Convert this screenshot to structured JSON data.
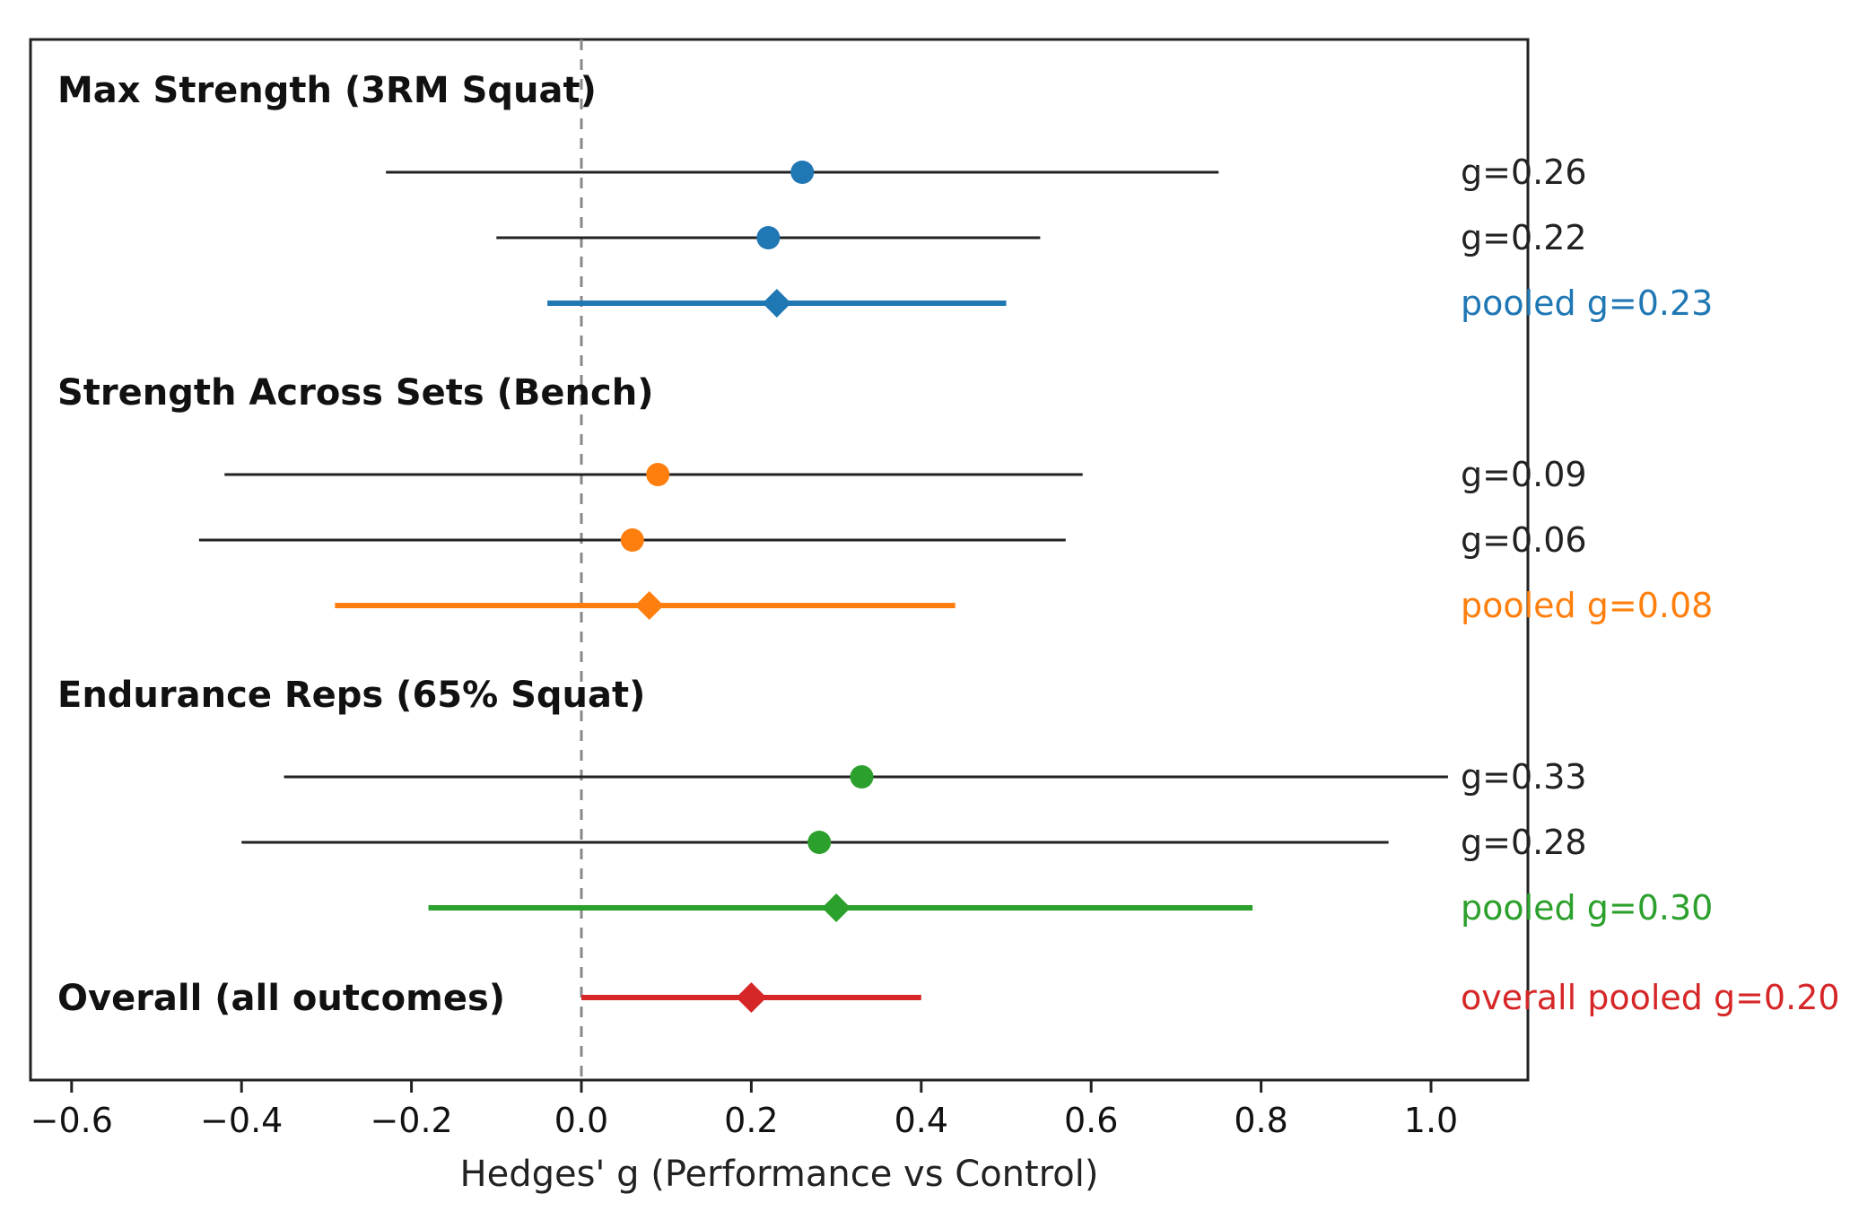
{
  "chart_data": {
    "type": "forest",
    "xlabel": "Hedges' g (Performance vs Control)",
    "xlim": [
      -0.65,
      1.12
    ],
    "xticks": [
      -0.6,
      -0.4,
      -0.2,
      0.0,
      0.2,
      0.4,
      0.6,
      0.8,
      1.0
    ],
    "xtick_labels": [
      "−0.6",
      "−0.4",
      "−0.2",
      "0.0",
      "0.2",
      "0.4",
      "0.6",
      "0.8",
      "1.0"
    ],
    "reference_line": 0.0,
    "colors": {
      "study_line": "#222222",
      "reference": "#888888",
      "blue": "#1f77b4",
      "orange": "#ff7f0e",
      "green": "#2ca02c",
      "red": "#d62728"
    },
    "groups": [
      {
        "title": "Max Strength (3RM Squat)",
        "color": "#1f77b4",
        "studies": [
          {
            "g": 0.26,
            "lo": -0.23,
            "hi": 0.75,
            "label": "g=0.26"
          },
          {
            "g": 0.22,
            "lo": -0.1,
            "hi": 0.54,
            "label": "g=0.22"
          }
        ],
        "pooled": {
          "g": 0.23,
          "lo": -0.04,
          "hi": 0.5,
          "label": "pooled g=0.23"
        }
      },
      {
        "title": "Strength Across Sets (Bench)",
        "color": "#ff7f0e",
        "studies": [
          {
            "g": 0.09,
            "lo": -0.42,
            "hi": 0.59,
            "label": "g=0.09"
          },
          {
            "g": 0.06,
            "lo": -0.45,
            "hi": 0.57,
            "label": "g=0.06"
          }
        ],
        "pooled": {
          "g": 0.08,
          "lo": -0.29,
          "hi": 0.44,
          "label": "pooled g=0.08"
        }
      },
      {
        "title": "Endurance Reps (65% Squat)",
        "color": "#2ca02c",
        "studies": [
          {
            "g": 0.33,
            "lo": -0.35,
            "hi": 1.02,
            "label": "g=0.33"
          },
          {
            "g": 0.28,
            "lo": -0.4,
            "hi": 0.95,
            "label": "g=0.28"
          }
        ],
        "pooled": {
          "g": 0.3,
          "lo": -0.18,
          "hi": 0.79,
          "label": "pooled g=0.30"
        }
      }
    ],
    "overall": {
      "title": "Overall (all outcomes)",
      "color": "#d62728",
      "g": 0.2,
      "lo": 0.0,
      "hi": 0.4,
      "label": "overall pooled g=0.20"
    }
  }
}
